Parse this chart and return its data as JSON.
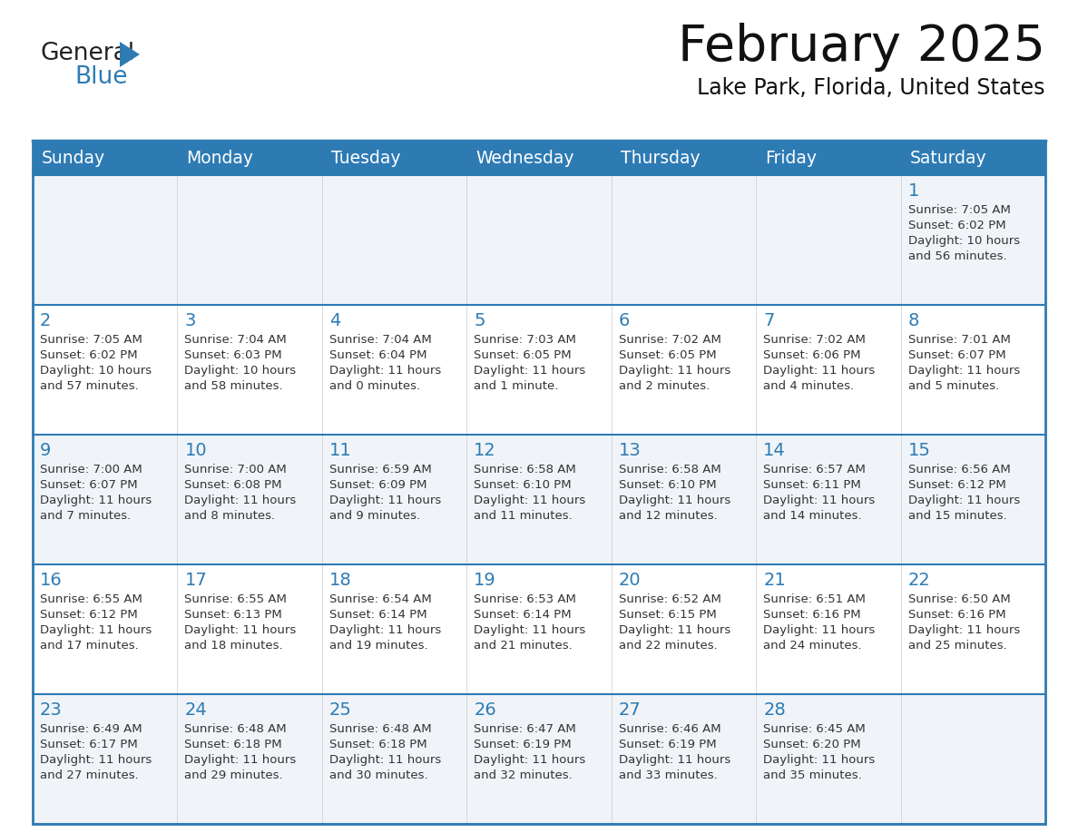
{
  "title": "February 2025",
  "subtitle": "Lake Park, Florida, United States",
  "header_bg": "#2E7BB4",
  "header_text_color": "#FFFFFF",
  "cell_bg_odd": "#F0F4F8",
  "cell_bg_even": "#FFFFFF",
  "border_color": "#2E7BB4",
  "day_number_color": "#2E7BB4",
  "text_color": "#333333",
  "logo_black": "#222222",
  "logo_blue": "#2E7BB4",
  "days_of_week": [
    "Sunday",
    "Monday",
    "Tuesday",
    "Wednesday",
    "Thursday",
    "Friday",
    "Saturday"
  ],
  "calendar": [
    [
      null,
      null,
      null,
      null,
      null,
      null,
      1
    ],
    [
      2,
      3,
      4,
      5,
      6,
      7,
      8
    ],
    [
      9,
      10,
      11,
      12,
      13,
      14,
      15
    ],
    [
      16,
      17,
      18,
      19,
      20,
      21,
      22
    ],
    [
      23,
      24,
      25,
      26,
      27,
      28,
      null
    ]
  ],
  "sun_data": {
    "1": {
      "rise": "7:05 AM",
      "set": "6:02 PM",
      "daylight": "10 hours and 56 minutes"
    },
    "2": {
      "rise": "7:05 AM",
      "set": "6:02 PM",
      "daylight": "10 hours and 57 minutes"
    },
    "3": {
      "rise": "7:04 AM",
      "set": "6:03 PM",
      "daylight": "10 hours and 58 minutes"
    },
    "4": {
      "rise": "7:04 AM",
      "set": "6:04 PM",
      "daylight": "11 hours and 0 minutes"
    },
    "5": {
      "rise": "7:03 AM",
      "set": "6:05 PM",
      "daylight": "11 hours and 1 minute"
    },
    "6": {
      "rise": "7:02 AM",
      "set": "6:05 PM",
      "daylight": "11 hours and 2 minutes"
    },
    "7": {
      "rise": "7:02 AM",
      "set": "6:06 PM",
      "daylight": "11 hours and 4 minutes"
    },
    "8": {
      "rise": "7:01 AM",
      "set": "6:07 PM",
      "daylight": "11 hours and 5 minutes"
    },
    "9": {
      "rise": "7:00 AM",
      "set": "6:07 PM",
      "daylight": "11 hours and 7 minutes"
    },
    "10": {
      "rise": "7:00 AM",
      "set": "6:08 PM",
      "daylight": "11 hours and 8 minutes"
    },
    "11": {
      "rise": "6:59 AM",
      "set": "6:09 PM",
      "daylight": "11 hours and 9 minutes"
    },
    "12": {
      "rise": "6:58 AM",
      "set": "6:10 PM",
      "daylight": "11 hours and 11 minutes"
    },
    "13": {
      "rise": "6:58 AM",
      "set": "6:10 PM",
      "daylight": "11 hours and 12 minutes"
    },
    "14": {
      "rise": "6:57 AM",
      "set": "6:11 PM",
      "daylight": "11 hours and 14 minutes"
    },
    "15": {
      "rise": "6:56 AM",
      "set": "6:12 PM",
      "daylight": "11 hours and 15 minutes"
    },
    "16": {
      "rise": "6:55 AM",
      "set": "6:12 PM",
      "daylight": "11 hours and 17 minutes"
    },
    "17": {
      "rise": "6:55 AM",
      "set": "6:13 PM",
      "daylight": "11 hours and 18 minutes"
    },
    "18": {
      "rise": "6:54 AM",
      "set": "6:14 PM",
      "daylight": "11 hours and 19 minutes"
    },
    "19": {
      "rise": "6:53 AM",
      "set": "6:14 PM",
      "daylight": "11 hours and 21 minutes"
    },
    "20": {
      "rise": "6:52 AM",
      "set": "6:15 PM",
      "daylight": "11 hours and 22 minutes"
    },
    "21": {
      "rise": "6:51 AM",
      "set": "6:16 PM",
      "daylight": "11 hours and 24 minutes"
    },
    "22": {
      "rise": "6:50 AM",
      "set": "6:16 PM",
      "daylight": "11 hours and 25 minutes"
    },
    "23": {
      "rise": "6:49 AM",
      "set": "6:17 PM",
      "daylight": "11 hours and 27 minutes"
    },
    "24": {
      "rise": "6:48 AM",
      "set": "6:18 PM",
      "daylight": "11 hours and 29 minutes"
    },
    "25": {
      "rise": "6:48 AM",
      "set": "6:18 PM",
      "daylight": "11 hours and 30 minutes"
    },
    "26": {
      "rise": "6:47 AM",
      "set": "6:19 PM",
      "daylight": "11 hours and 32 minutes"
    },
    "27": {
      "rise": "6:46 AM",
      "set": "6:19 PM",
      "daylight": "11 hours and 33 minutes"
    },
    "28": {
      "rise": "6:45 AM",
      "set": "6:20 PM",
      "daylight": "11 hours and 35 minutes"
    }
  }
}
